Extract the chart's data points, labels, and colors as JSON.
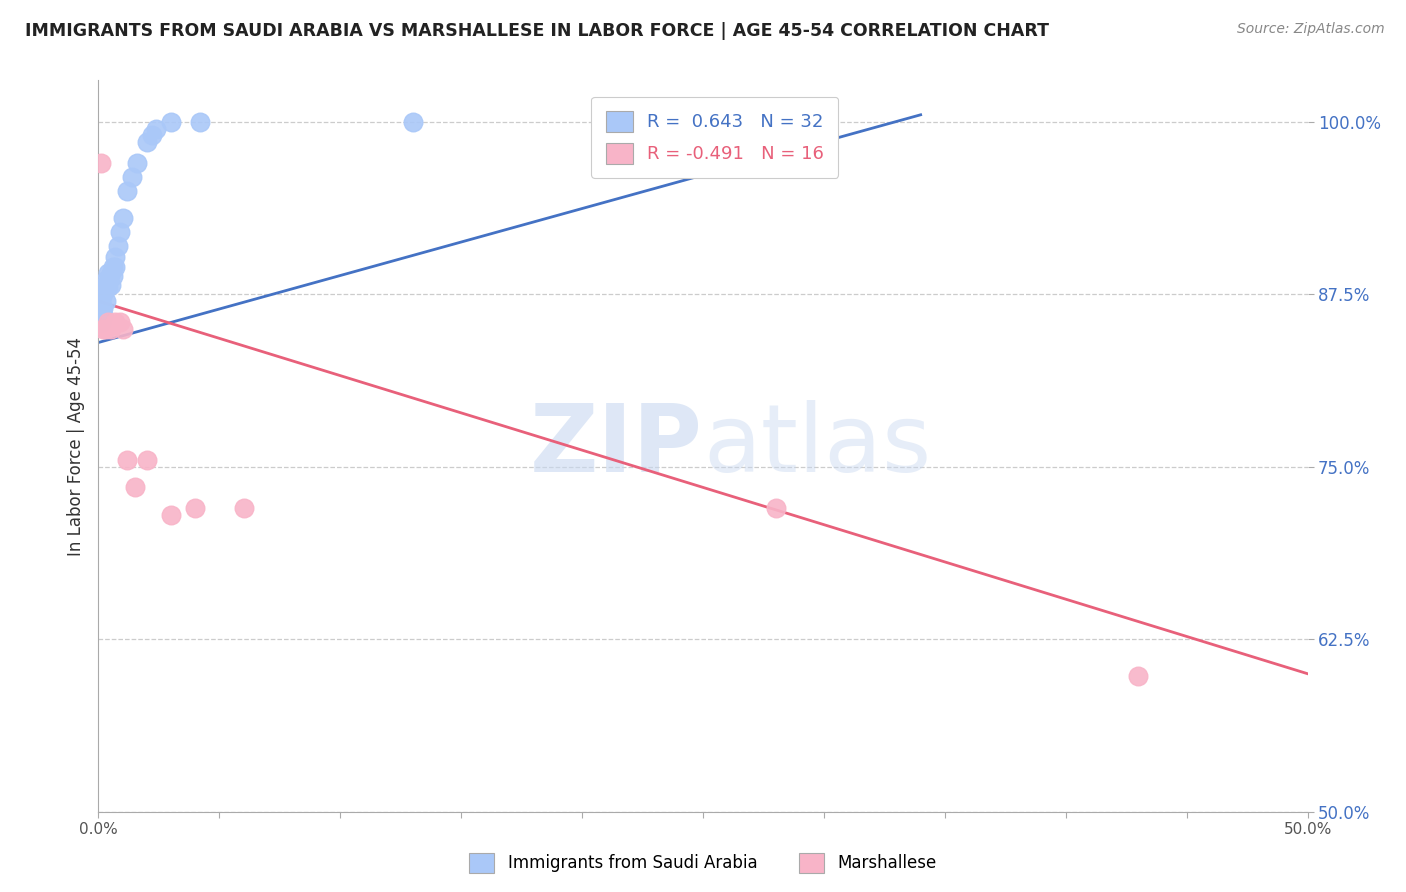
{
  "title": "IMMIGRANTS FROM SAUDI ARABIA VS MARSHALLESE IN LABOR FORCE | AGE 45-54 CORRELATION CHART",
  "source": "Source: ZipAtlas.com",
  "ylabel": "In Labor Force | Age 45-54",
  "xlim": [
    0.0,
    0.5
  ],
  "ylim": [
    0.5,
    1.03
  ],
  "yticks": [
    0.5,
    0.625,
    0.75,
    0.875,
    1.0
  ],
  "ytick_labels": [
    "50.0%",
    "62.5%",
    "75.0%",
    "87.5%",
    "100.0%"
  ],
  "xticks": [
    0.0,
    0.05,
    0.1,
    0.15,
    0.2,
    0.25,
    0.3,
    0.35,
    0.4,
    0.45,
    0.5
  ],
  "xtick_labels": [
    "0.0%",
    "",
    "",
    "",
    "",
    "",
    "",
    "",
    "",
    "",
    "50.0%"
  ],
  "saudi_R": 0.643,
  "saudi_N": 32,
  "marsh_R": -0.491,
  "marsh_N": 16,
  "saudi_color": "#aac8f8",
  "marsh_color": "#f8b4c8",
  "saudi_line_color": "#4472c4",
  "marsh_line_color": "#e8607a",
  "watermark_zip": "ZIP",
  "watermark_atlas": "atlas",
  "legend_label_saudi": "Immigrants from Saudi Arabia",
  "legend_label_marsh": "Marshallese",
  "saudi_x": [
    0.001,
    0.001,
    0.001,
    0.001,
    0.001,
    0.002,
    0.002,
    0.002,
    0.002,
    0.003,
    0.003,
    0.003,
    0.004,
    0.004,
    0.005,
    0.005,
    0.006,
    0.006,
    0.007,
    0.007,
    0.008,
    0.009,
    0.01,
    0.012,
    0.014,
    0.016,
    0.02,
    0.022,
    0.024,
    0.03,
    0.042,
    0.13
  ],
  "saudi_y": [
    0.855,
    0.86,
    0.865,
    0.87,
    0.875,
    0.86,
    0.865,
    0.875,
    0.88,
    0.87,
    0.88,
    0.885,
    0.88,
    0.89,
    0.882,
    0.89,
    0.888,
    0.895,
    0.895,
    0.902,
    0.91,
    0.92,
    0.93,
    0.95,
    0.96,
    0.97,
    0.985,
    0.99,
    0.995,
    1.0,
    1.0,
    1.0
  ],
  "marsh_x": [
    0.001,
    0.002,
    0.003,
    0.004,
    0.005,
    0.007,
    0.009,
    0.01,
    0.012,
    0.015,
    0.02,
    0.03,
    0.04,
    0.06,
    0.28,
    0.43
  ],
  "marsh_y": [
    0.97,
    0.85,
    0.85,
    0.855,
    0.85,
    0.855,
    0.855,
    0.85,
    0.755,
    0.735,
    0.755,
    0.715,
    0.72,
    0.72,
    0.72,
    0.598
  ],
  "saudi_line_x": [
    0.0,
    0.34
  ],
  "saudi_line_y": [
    0.84,
    1.005
  ],
  "marsh_line_x": [
    0.0,
    0.5
  ],
  "marsh_line_y": [
    0.87,
    0.6
  ]
}
